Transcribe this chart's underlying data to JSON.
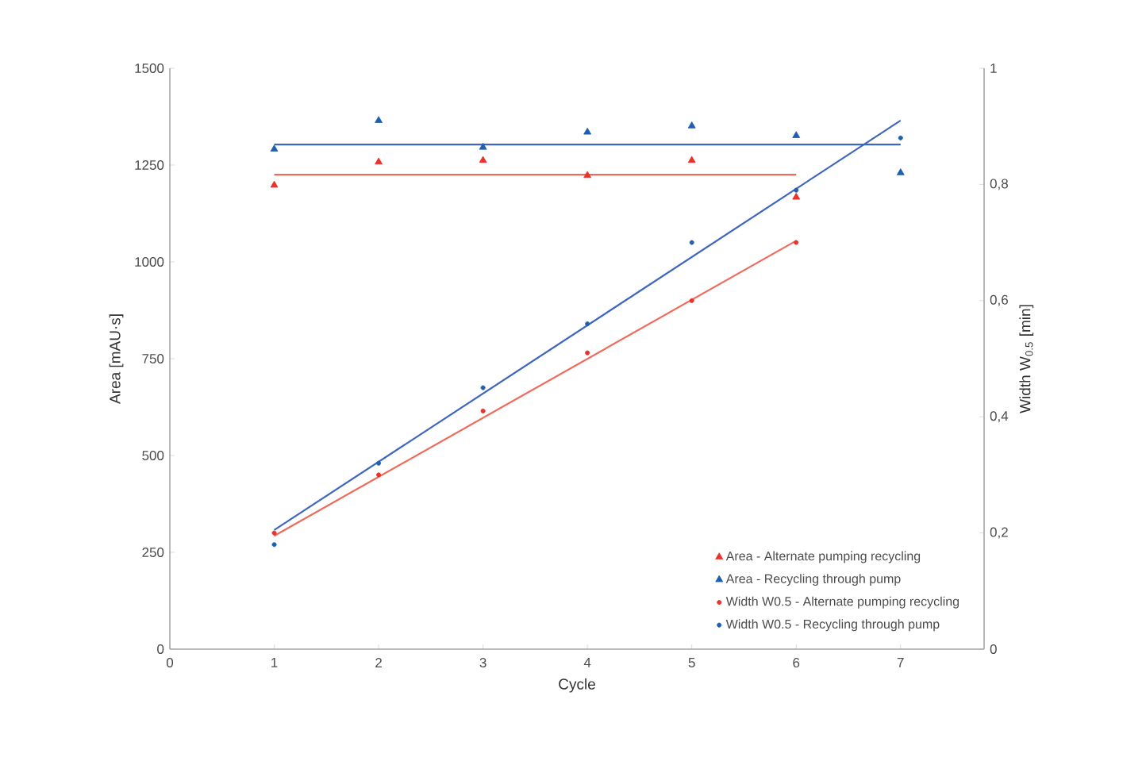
{
  "chart_data": {
    "type": "scatter",
    "xlabel": "Cycle",
    "ylabel": "Area  [mAU·s]",
    "y2label": "Width W$_{0.5}$  [min]",
    "xlim": [
      0,
      7.8
    ],
    "xticks": [
      0,
      1,
      2,
      3,
      4,
      5,
      6,
      7
    ],
    "ylim": [
      0,
      1500
    ],
    "yticks": [
      0,
      250,
      500,
      750,
      1000,
      1250,
      1500
    ],
    "y2lim": [
      0,
      1
    ],
    "y2ticks": [
      {
        "value": 0,
        "label": "0"
      },
      {
        "value": 0.2,
        "label": "0,2"
      },
      {
        "value": 0.4,
        "label": "0,4"
      },
      {
        "value": 0.6,
        "label": "0,6"
      },
      {
        "value": 0.8,
        "label": "0,8"
      },
      {
        "value": 1,
        "label": "1"
      }
    ],
    "legend": "bottom right",
    "grid": false,
    "series": [
      {
        "name": "Area - Alternate pumping recycling",
        "color": "#e8322a",
        "marker": "triangle",
        "x": [
          1,
          2,
          3,
          4,
          5,
          6
        ],
        "values": [
          1198,
          1258,
          1262,
          1223,
          1262,
          1167
        ]
      },
      {
        "name": "Area - Recycling through pump",
        "color": "#1f5fae",
        "marker": "triangle",
        "x": [
          1,
          2,
          3,
          4,
          5,
          6,
          7
        ],
        "values": [
          1291,
          1365,
          1296,
          1335,
          1351,
          1326,
          1230
        ]
      },
      {
        "name": "Width W0.5 - Alternate pumping recycling",
        "color": "#e8322a",
        "marker": "circle",
        "axis": "y2",
        "x": [
          1,
          2,
          3,
          4,
          5,
          6
        ],
        "values": [
          0.2,
          0.3,
          0.41,
          0.51,
          0.6,
          0.7
        ]
      },
      {
        "name": "Width W0.5 - Recycling through pump",
        "color": "#1f5fae",
        "marker": "circle",
        "axis": "y2",
        "x": [
          1,
          2,
          3,
          4,
          5,
          6,
          7
        ],
        "values": [
          0.18,
          0.32,
          0.45,
          0.56,
          0.7,
          0.79,
          0.88
        ]
      },
      {
        "type": "line",
        "color": "#f06a5a",
        "marker": "none",
        "x": [
          1,
          6
        ],
        "values": [
          1225,
          1225
        ]
      },
      {
        "type": "line",
        "color": "#3f66bf",
        "marker": "none",
        "x": [
          1,
          7
        ],
        "values": [
          1303,
          1303
        ]
      },
      {
        "type": "line",
        "color": "#f06a5a",
        "marker": "none",
        "axis": "y2",
        "x": [
          1,
          6
        ],
        "values": [
          0.195,
          0.703
        ]
      },
      {
        "type": "line",
        "color": "#3f66bf",
        "marker": "none",
        "axis": "y2",
        "x": [
          1,
          7
        ],
        "values": [
          0.205,
          0.91
        ]
      }
    ]
  }
}
